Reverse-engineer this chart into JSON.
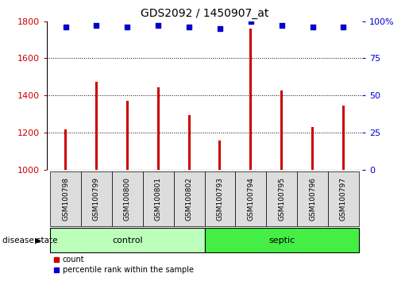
{
  "title": "GDS2092 / 1450907_at",
  "samples": [
    "GSM100798",
    "GSM100799",
    "GSM100800",
    "GSM100801",
    "GSM100802",
    "GSM100793",
    "GSM100794",
    "GSM100795",
    "GSM100796",
    "GSM100797"
  ],
  "counts": [
    1220,
    1475,
    1370,
    1445,
    1295,
    1160,
    1760,
    1425,
    1230,
    1345
  ],
  "percentiles": [
    96,
    97,
    96,
    97,
    96,
    95,
    100,
    97,
    96,
    96
  ],
  "groups": [
    "control",
    "control",
    "control",
    "control",
    "control",
    "septic",
    "septic",
    "septic",
    "septic",
    "septic"
  ],
  "ylim_left": [
    1000,
    1800
  ],
  "ylim_right": [
    0,
    100
  ],
  "yticks_left": [
    1000,
    1200,
    1400,
    1600,
    1800
  ],
  "yticks_right": [
    0,
    25,
    50,
    75,
    100
  ],
  "bar_color": "#cc0000",
  "dot_color": "#0000cc",
  "control_color": "#bbffbb",
  "septic_color": "#44ee44",
  "gray_bg": "#dddddd",
  "grid_color": "#000000",
  "left_axis_color": "#cc0000",
  "right_axis_color": "#0000cc"
}
